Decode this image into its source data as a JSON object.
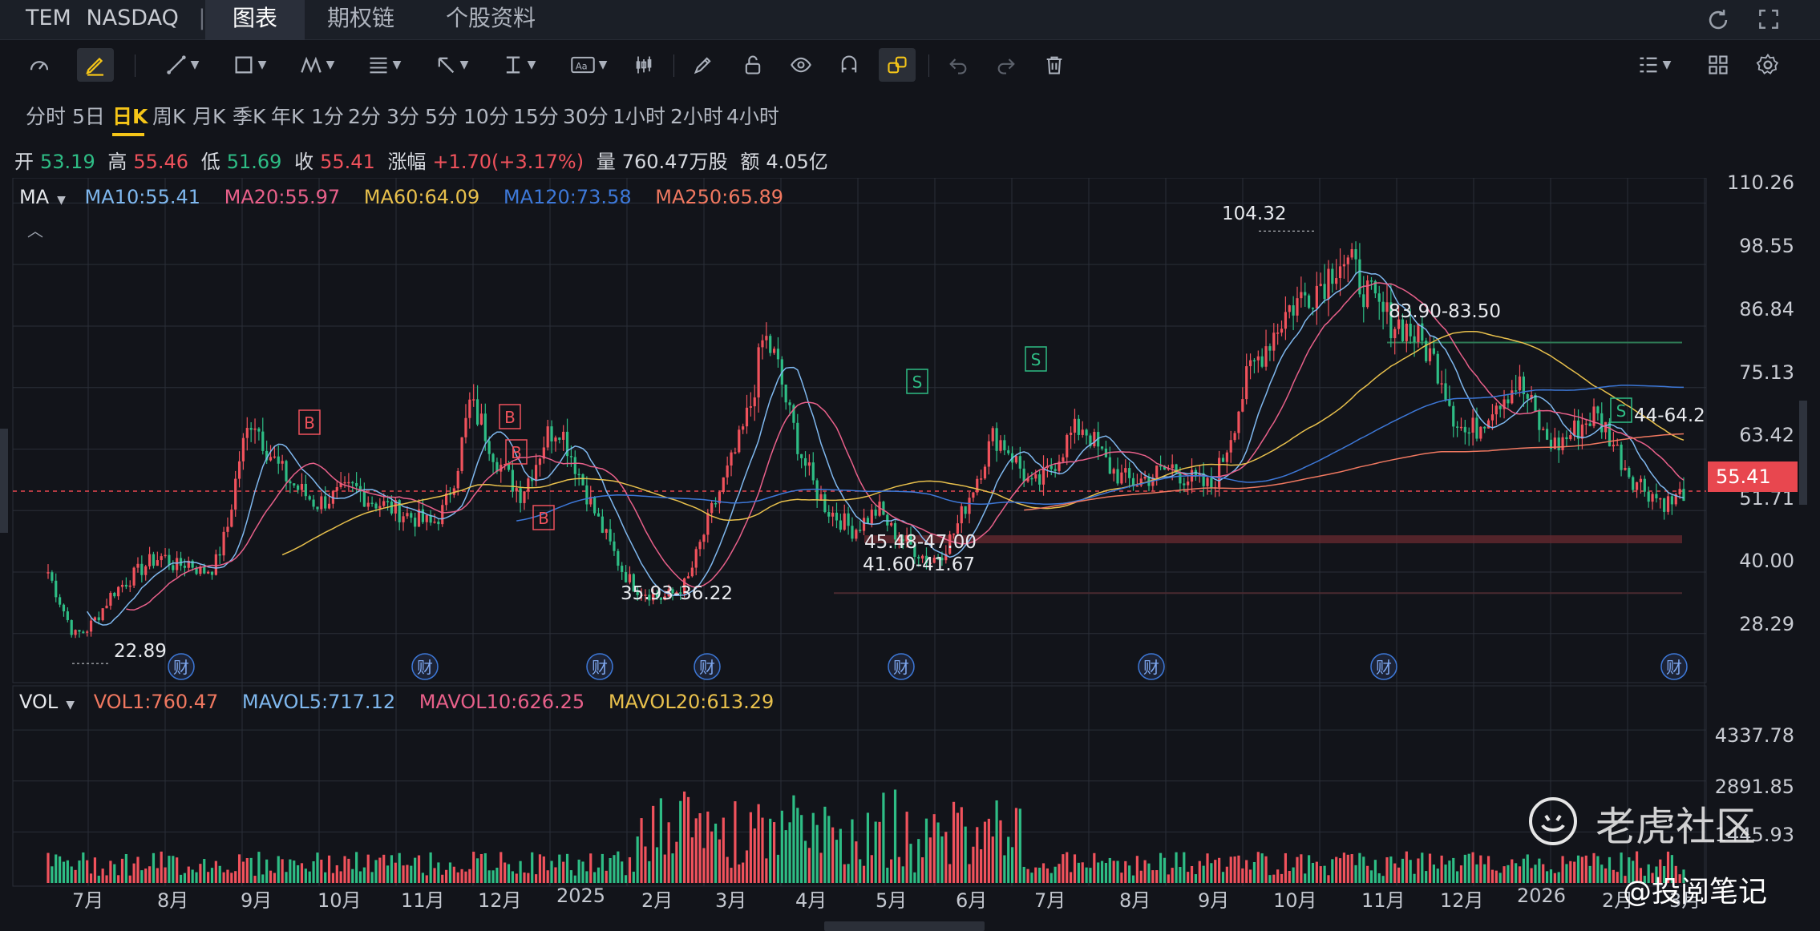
{
  "header": {
    "symbol": "TEM",
    "exchange": "NASDAQ",
    "separator": "|",
    "tabs": [
      {
        "label": "图表",
        "active": true
      },
      {
        "label": "期权链",
        "active": false
      },
      {
        "label": "个股资料",
        "active": false
      }
    ],
    "right_icons": [
      "refresh-icon",
      "fullscreen-icon"
    ]
  },
  "toolbar": {
    "left_tools": [
      "gauge-icon",
      "pen-edit-icon",
      "line-tool-icon",
      "rectangle-tool-icon",
      "pattern-tool-icon",
      "fibonacci-tool-icon",
      "arrow-tool-icon",
      "measure-tool-icon",
      "text-tool-icon",
      "candle-tool-icon",
      "brush-icon",
      "lock-icon",
      "eye-icon",
      "magnet-icon",
      "link-icon",
      "undo-icon",
      "redo-icon",
      "trash-icon"
    ],
    "right_tools": [
      "list-icon",
      "grid-layout-icon",
      "settings-icon"
    ]
  },
  "periods": [
    "分时",
    "5日",
    "日K",
    "周K",
    "月K",
    "季K",
    "年K",
    "1分",
    "2分",
    "3分",
    "5分",
    "10分",
    "15分",
    "30分",
    "1小时",
    "2小时",
    "4小时"
  ],
  "active_period": "日K",
  "ohlc": {
    "open_label": "开",
    "open": "53.19",
    "high_label": "高",
    "high": "55.46",
    "low_label": "低",
    "low": "51.69",
    "close_label": "收",
    "close": "55.41",
    "change_label": "涨幅",
    "change": "+1.70(+3.17%)",
    "volume_label": "量",
    "volume": "760.47万股",
    "amount_label": "额",
    "amount": "4.05亿"
  },
  "ma_legend": {
    "label": "MA",
    "items": [
      {
        "text": "MA10:55.41",
        "color": "#7fb8ef"
      },
      {
        "text": "MA20:55.97",
        "color": "#e8608a"
      },
      {
        "text": "MA60:64.09",
        "color": "#e8c04c"
      },
      {
        "text": "MA120:73.58",
        "color": "#3d78d8"
      },
      {
        "text": "MA250:65.89",
        "color": "#f07860"
      }
    ]
  },
  "vol_legend": {
    "label": "VOL",
    "items": [
      {
        "text": "VOL1:760.47",
        "color": "#f07860"
      },
      {
        "text": "MAVOL5:717.12",
        "color": "#7fb8ef"
      },
      {
        "text": "MAVOL10:626.25",
        "color": "#e8608a"
      },
      {
        "text": "MAVOL20:613.29",
        "color": "#e8c04c"
      }
    ]
  },
  "price_axis": [
    "110.26",
    "98.55",
    "86.84",
    "75.13",
    "63.42",
    "51.71",
    "40.00",
    "28.29"
  ],
  "current_price": "55.41",
  "volume_axis": [
    "4337.78",
    "2891.85",
    "1445.93"
  ],
  "months": [
    "7月",
    "8月",
    "9月",
    "10月",
    "11月",
    "12月",
    "2025",
    "2月",
    "3月",
    "4月",
    "5月",
    "6月",
    "7月",
    "8月",
    "9月",
    "10月",
    "11月",
    "12月",
    "2026",
    "2月",
    "3月"
  ],
  "annotations": {
    "high": "104.32",
    "low": "22.89",
    "zone1": "35.93-36.22",
    "zone2a": "45.48-47.00",
    "zone2b": "41.60-41.67",
    "zone3": "83.90-83.50",
    "zone4": "44-64.2"
  },
  "signals": {
    "buy": "B",
    "sell": "S",
    "earnings": "财"
  },
  "watermark": {
    "brand": "老虎社区",
    "author": "@投阅笔记"
  },
  "colors": {
    "up": "#f0525c",
    "down": "#2ebd85",
    "accent": "#f5c518",
    "background": "#12141a"
  },
  "chart_data": {
    "type": "candlestick",
    "y_range": [
      22.0,
      112.0
    ],
    "volume_range": [
      0,
      5000
    ],
    "x_start": "2024-06",
    "x_end": "2026-03",
    "closes": [
      40,
      34,
      28,
      29,
      32,
      36,
      38,
      40,
      42,
      43,
      41,
      42,
      40,
      41,
      48,
      62,
      70,
      64,
      60,
      57,
      55,
      53,
      54,
      55,
      56,
      54,
      53,
      52,
      51,
      50,
      49,
      52,
      60,
      72,
      68,
      62,
      58,
      55,
      60,
      66,
      68,
      62,
      56,
      50,
      45,
      40,
      37,
      36,
      35,
      36,
      38,
      45,
      52,
      58,
      64,
      72,
      85,
      80,
      70,
      62,
      56,
      52,
      50,
      48,
      50,
      52,
      48,
      46,
      44,
      42,
      44,
      48,
      54,
      60,
      66,
      64,
      60,
      56,
      58,
      62,
      66,
      68,
      64,
      60,
      58,
      57,
      58,
      59,
      60,
      58,
      57,
      56,
      62,
      70,
      78,
      82,
      86,
      90,
      92,
      94,
      96,
      100,
      98,
      94,
      90,
      88,
      87,
      85,
      82,
      78,
      70,
      66,
      68,
      72,
      74,
      76,
      72,
      66,
      64,
      66,
      68,
      70,
      67,
      62,
      58,
      56,
      54,
      53,
      55.41
    ],
    "ma_values": {
      "MA10": 55.41,
      "MA20": 55.97,
      "MA60": 64.09,
      "MA120": 73.58,
      "MA250": 65.89
    },
    "extremes": {
      "high": 104.32,
      "low": 22.89
    },
    "volume_levels": [
      4337.78,
      2891.85,
      1445.93
    ]
  }
}
